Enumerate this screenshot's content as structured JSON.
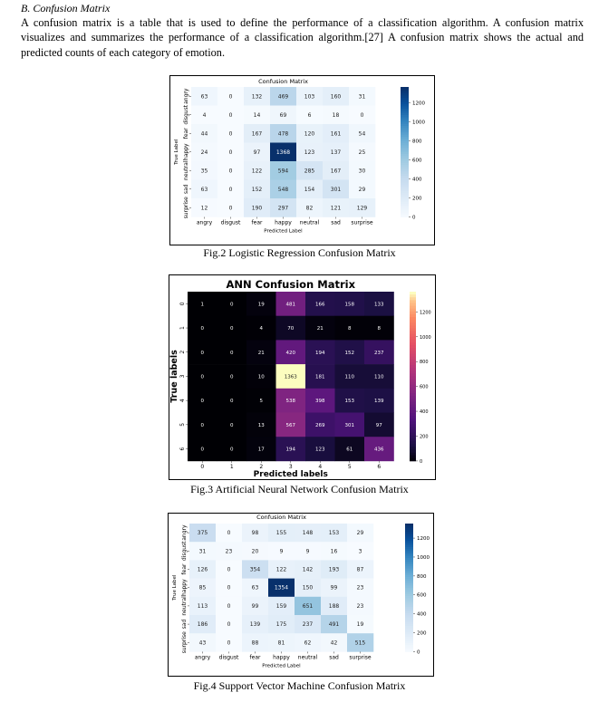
{
  "section": {
    "heading": "B.   Confusion Matrix"
  },
  "paragraph": "A confusion matrix is a table that is used to define the performance of a classification algorithm. A confusion matrix visualizes and summarizes the performance of a classification algorithm.[27] A confusion matrix shows the actual and predicted counts of each category of emotion.",
  "captions": {
    "fig2": "Fig.2 Logistic Regression Confusion Matrix",
    "fig3": "Fig.3 Artificial Neural Network Confusion Matrix",
    "fig4": "Fig.4 Support Vector Machine Confusion Matrix"
  },
  "chart_data": [
    {
      "type": "heatmap",
      "title": "Confusion Matrix",
      "xlabel": "Predicted Label",
      "ylabel": "True Label",
      "colormap": "Blues",
      "x_categories": [
        "angry",
        "disgust",
        "fear",
        "happy",
        "neutral",
        "sad",
        "surprise"
      ],
      "y_categories": [
        "angry",
        "disgust",
        "fear",
        "happy",
        "neutral",
        "sad",
        "surprise"
      ],
      "values": [
        [
          63,
          0,
          132,
          469,
          103,
          160,
          31
        ],
        [
          4,
          0,
          14,
          69,
          6,
          18,
          0
        ],
        [
          44,
          0,
          167,
          478,
          120,
          161,
          54
        ],
        [
          24,
          0,
          97,
          1368,
          123,
          137,
          25
        ],
        [
          35,
          0,
          122,
          594,
          285,
          167,
          30
        ],
        [
          63,
          0,
          152,
          548,
          154,
          301,
          29
        ],
        [
          12,
          0,
          190,
          297,
          82,
          121,
          129
        ]
      ],
      "colorbar_ticks": [
        0,
        200,
        400,
        600,
        800,
        1000,
        1200
      ],
      "vmax": 1368
    },
    {
      "type": "heatmap",
      "title": "ANN Confusion Matrix",
      "xlabel": "Predicted labels",
      "ylabel": "True labels",
      "colormap": "magma",
      "x_categories": [
        "0",
        "1",
        "2",
        "3",
        "4",
        "5",
        "6"
      ],
      "y_categories": [
        "0",
        "1",
        "2",
        "3",
        "4",
        "5",
        "6"
      ],
      "values": [
        [
          1,
          0,
          19,
          481,
          166,
          158,
          133
        ],
        [
          0,
          0,
          4,
          70,
          21,
          8,
          8
        ],
        [
          0,
          0,
          21,
          420,
          194,
          152,
          237
        ],
        [
          0,
          0,
          10,
          1363,
          181,
          110,
          110
        ],
        [
          0,
          0,
          5,
          538,
          398,
          153,
          139
        ],
        [
          0,
          0,
          13,
          567,
          269,
          301,
          97
        ],
        [
          0,
          0,
          17,
          194,
          123,
          61,
          436
        ]
      ],
      "colorbar_ticks": [
        0,
        200,
        400,
        600,
        800,
        1000,
        1200
      ],
      "vmax": 1363
    },
    {
      "type": "heatmap",
      "title": "Confusion Matrix",
      "xlabel": "Predicted Label",
      "ylabel": "True Label",
      "colormap": "Blues",
      "x_categories": [
        "angry",
        "disgust",
        "fear",
        "happy",
        "neutral",
        "sad",
        "surprise"
      ],
      "y_categories": [
        "angry",
        "disgust",
        "fear",
        "happy",
        "neutral",
        "sad",
        "surprise"
      ],
      "values": [
        [
          375,
          0,
          98,
          155,
          148,
          153,
          29
        ],
        [
          31,
          23,
          20,
          9,
          9,
          16,
          3
        ],
        [
          126,
          0,
          354,
          122,
          142,
          193,
          87
        ],
        [
          85,
          0,
          63,
          1354,
          150,
          99,
          23
        ],
        [
          113,
          0,
          99,
          159,
          651,
          188,
          23
        ],
        [
          186,
          0,
          139,
          175,
          237,
          491,
          19
        ],
        [
          43,
          0,
          88,
          81,
          62,
          42,
          515
        ]
      ],
      "colorbar_ticks": [
        0,
        200,
        400,
        600,
        800,
        1000,
        1200
      ],
      "vmax": 1354
    }
  ]
}
